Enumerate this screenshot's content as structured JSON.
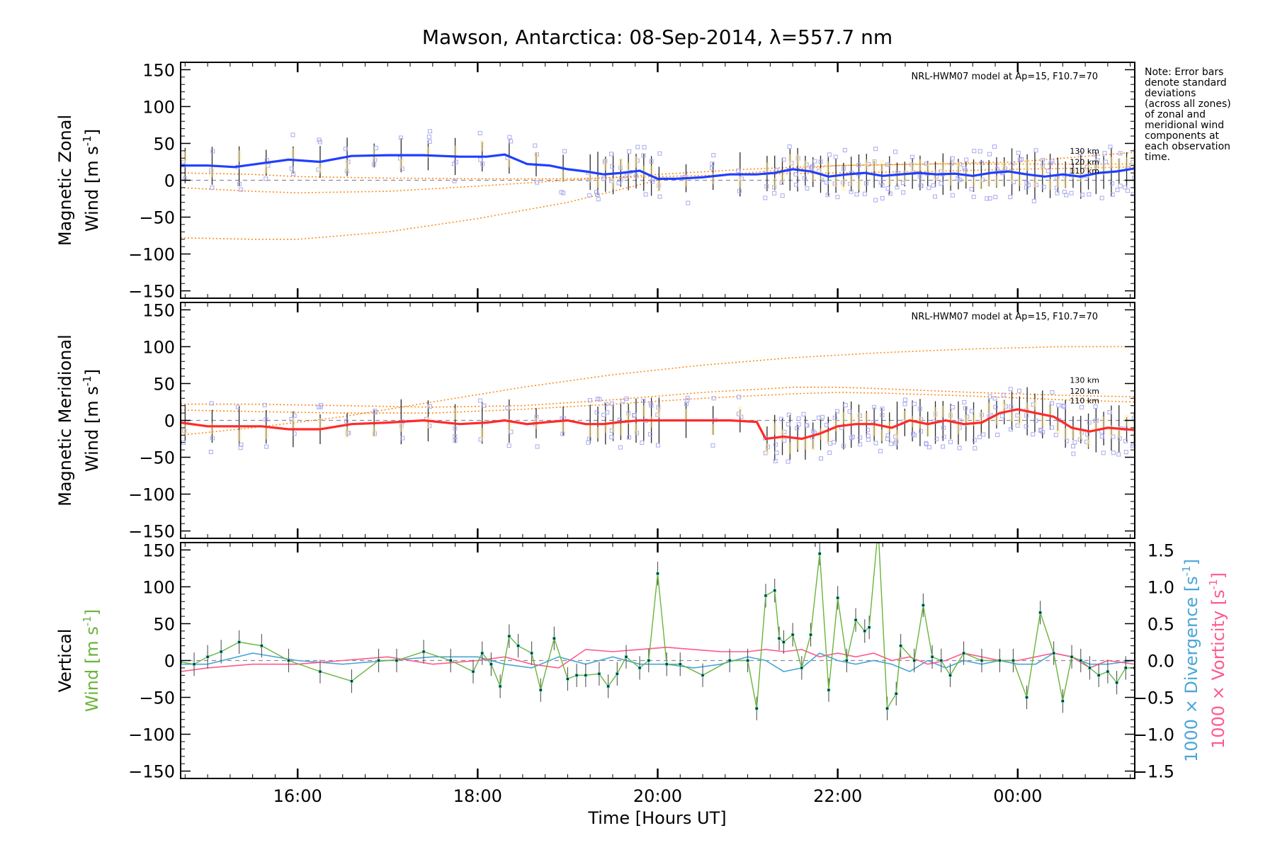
{
  "chart_data": {
    "type": "line",
    "title": "Mawson, Antarctica: 08-Sep-2014, λ=557.7 nm",
    "note": [
      "Note: Error bars",
      "denote standard",
      "deviations",
      "(across all zones)",
      "of zonal and",
      "meridional wind",
      "components at",
      "each observation",
      "time."
    ],
    "xlabel": "Time [Hours UT]",
    "xlim": [
      14.7,
      25.3
    ],
    "xticks": [
      {
        "v": 16,
        "label": "16:00"
      },
      {
        "v": 18,
        "label": "18:00"
      },
      {
        "v": 20,
        "label": "20:00"
      },
      {
        "v": 22,
        "label": "22:00"
      },
      {
        "v": 24,
        "label": "00:00"
      }
    ],
    "ylim": [
      -160,
      160
    ],
    "yticks": [
      150,
      100,
      50,
      0,
      -50,
      -100,
      -150
    ],
    "grid": false,
    "panels": [
      {
        "name": "zonal",
        "ylabel_line1": "Magnetic Zonal",
        "ylabel_line2": "Wind [m s",
        "ylabel_sup": "-1",
        "ylabel_close": "]",
        "model_label": "NRL-HWM07 model at Ap=15, F10.7=70",
        "model_color": "#ff8c1a",
        "model_curves": [
          {
            "name": "130 km",
            "x": [
              14.7,
              15.5,
              16.0,
              17.0,
              18.0,
              19.0,
              19.5,
              20.0,
              21.0,
              22.0,
              23.0,
              24.0,
              25.3
            ],
            "y": [
              -78,
              -80,
              -80,
              -70,
              -52,
              -30,
              -15,
              0,
              10,
              20,
              22,
              25,
              38
            ]
          },
          {
            "name": "120 km",
            "x": [
              14.7,
              15.5,
              16.0,
              17.0,
              18.0,
              19.0,
              20.0,
              21.0,
              22.0,
              23.0,
              24.0,
              25.3
            ],
            "y": [
              -10,
              -15,
              -17,
              -15,
              -8,
              0,
              8,
              15,
              20,
              22,
              22,
              22
            ]
          },
          {
            "name": "110 km",
            "x": [
              14.7,
              15.5,
              16.0,
              17.0,
              18.0,
              19.0,
              20.0,
              21.0,
              22.0,
              23.0,
              24.0,
              25.3
            ],
            "y": [
              10,
              8,
              5,
              3,
              2,
              2,
              5,
              8,
              10,
              12,
              15,
              18
            ]
          }
        ],
        "model_tags": [
          "130 km",
          "120 km",
          "110 km"
        ],
        "mean_color": "#1f3fff",
        "mean": {
          "x": [
            14.7,
            15.0,
            15.3,
            15.6,
            15.9,
            16.25,
            16.6,
            17.0,
            17.4,
            17.8,
            18.1,
            18.3,
            18.55,
            18.8,
            19.0,
            19.2,
            19.4,
            19.6,
            19.8,
            20.0,
            20.2,
            20.5,
            20.8,
            21.1,
            21.3,
            21.5,
            21.7,
            21.9,
            22.1,
            22.3,
            22.5,
            22.7,
            22.9,
            23.1,
            23.3,
            23.5,
            23.7,
            23.9,
            24.1,
            24.3,
            24.5,
            24.7,
            24.9,
            25.1,
            25.3
          ],
          "y": [
            20,
            20,
            18,
            23,
            28,
            25,
            33,
            34,
            34,
            32,
            32,
            35,
            22,
            20,
            15,
            12,
            8,
            10,
            13,
            2,
            2,
            4,
            8,
            8,
            10,
            15,
            12,
            5,
            8,
            10,
            6,
            8,
            10,
            8,
            9,
            6,
            10,
            12,
            8,
            5,
            8,
            5,
            10,
            12,
            16
          ]
        },
        "errbar_half": 22
      },
      {
        "name": "meridional",
        "ylabel_line1": "Magnetic Meridional",
        "ylabel_line2": "Wind [m s",
        "ylabel_sup": "-1",
        "ylabel_close": "]",
        "model_label": "NRL-HWM07 model at Ap=15, F10.7=70",
        "model_color": "#ff8c1a",
        "model_curves": [
          {
            "name": "130 km",
            "x": [
              14.7,
              15.5,
              16.5,
              17.5,
              18.5,
              19.5,
              20.5,
              21.5,
              22.5,
              23.5,
              24.5,
              25.3
            ],
            "y": [
              -20,
              -10,
              5,
              25,
              45,
              62,
              75,
              85,
              92,
              97,
              100,
              100
            ]
          },
          {
            "name": "120 km",
            "x": [
              14.7,
              15.5,
              16.5,
              17.5,
              18.5,
              19.5,
              20.5,
              21.5,
              22.0,
              22.5,
              23.5,
              24.5,
              25.3
            ],
            "y": [
              22,
              22,
              20,
              18,
              20,
              28,
              38,
              45,
              45,
              43,
              38,
              34,
              32
            ]
          },
          {
            "name": "110 km",
            "x": [
              14.7,
              15.5,
              16.5,
              17.5,
              18.5,
              19.5,
              20.5,
              21.5,
              22.0,
              22.5,
              23.5,
              24.5,
              25.3
            ],
            "y": [
              14,
              12,
              10,
              10,
              15,
              22,
              30,
              36,
              38,
              37,
              33,
              28,
              25
            ]
          }
        ],
        "model_tags": [
          "130 km",
          "120 km",
          "110 km"
        ],
        "mean_color": "#ff2a2a",
        "mean": {
          "x": [
            14.7,
            15.0,
            15.3,
            15.6,
            15.9,
            16.25,
            16.6,
            17.0,
            17.4,
            17.8,
            18.1,
            18.3,
            18.55,
            18.8,
            19.0,
            19.2,
            19.4,
            19.6,
            19.8,
            20.0,
            20.2,
            20.5,
            20.8,
            21.1,
            21.2,
            21.4,
            21.6,
            21.8,
            22.0,
            22.2,
            22.4,
            22.6,
            22.8,
            23.0,
            23.2,
            23.4,
            23.6,
            23.8,
            24.0,
            24.2,
            24.4,
            24.6,
            24.8,
            25.0,
            25.3
          ],
          "y": [
            -3,
            -8,
            -8,
            -8,
            -12,
            -12,
            -5,
            -3,
            0,
            -5,
            -3,
            0,
            -5,
            -2,
            0,
            -5,
            -5,
            -2,
            0,
            0,
            0,
            0,
            0,
            -2,
            -25,
            -22,
            -25,
            -18,
            -8,
            -5,
            -5,
            -10,
            0,
            -5,
            0,
            -5,
            -3,
            10,
            15,
            10,
            5,
            -10,
            -15,
            -10,
            -13
          ]
        },
        "errbar_half": 22
      },
      {
        "name": "vertical",
        "ylabel_line1": "Vertical",
        "ylabel_line2": "Wind [m s",
        "ylabel_sup": "-1",
        "ylabel_close": "]",
        "vertical_color": "#6ab43c",
        "vertical": {
          "x": [
            14.7,
            14.85,
            15.0,
            15.15,
            15.35,
            15.6,
            15.9,
            16.25,
            16.6,
            16.9,
            17.1,
            17.4,
            17.7,
            17.95,
            18.05,
            18.15,
            18.25,
            18.35,
            18.45,
            18.6,
            18.7,
            18.85,
            19.0,
            19.1,
            19.2,
            19.35,
            19.45,
            19.55,
            19.65,
            19.8,
            19.9,
            20.0,
            20.1,
            20.25,
            20.5,
            20.8,
            21.0,
            21.1,
            21.2,
            21.3,
            21.35,
            21.4,
            21.5,
            21.6,
            21.7,
            21.8,
            21.9,
            22.0,
            22.1,
            22.2,
            22.3,
            22.35,
            22.45,
            22.55,
            22.65,
            22.7,
            22.85,
            22.95,
            23.05,
            23.15,
            23.25,
            23.4,
            23.6,
            23.8,
            23.95,
            24.1,
            24.25,
            24.4,
            24.5,
            24.6,
            24.7,
            24.8,
            24.9,
            25.0,
            25.1,
            25.2,
            25.3
          ],
          "y": [
            -2,
            -5,
            5,
            12,
            25,
            20,
            0,
            -15,
            -28,
            0,
            0,
            12,
            0,
            -15,
            10,
            -5,
            -35,
            33,
            20,
            10,
            -40,
            30,
            -25,
            -20,
            -20,
            -18,
            -35,
            -18,
            5,
            -10,
            0,
            118,
            -5,
            -5,
            -20,
            0,
            0,
            -65,
            88,
            95,
            30,
            25,
            35,
            -10,
            35,
            145,
            -40,
            85,
            0,
            55,
            40,
            45,
            180,
            -65,
            -45,
            20,
            0,
            75,
            5,
            0,
            -20,
            10,
            0,
            0,
            0,
            -50,
            65,
            10,
            -55,
            5,
            0,
            -10,
            -20,
            -15,
            -30,
            -10,
            -10
          ]
        },
        "divergence_label": "1000 × Divergence [s",
        "divergence_sup": "-1",
        "divergence_close": "]",
        "divergence_color": "#4aa6d6",
        "divergence": {
          "x": [
            14.7,
            15.0,
            15.5,
            16.0,
            16.5,
            17.0,
            17.5,
            18.0,
            18.3,
            18.6,
            18.9,
            19.2,
            19.5,
            19.8,
            20.1,
            20.4,
            20.7,
            21.0,
            21.2,
            21.4,
            21.6,
            21.8,
            22.0,
            22.2,
            22.4,
            22.6,
            22.8,
            23.0,
            23.2,
            23.4,
            23.6,
            23.8,
            24.0,
            24.2,
            24.4,
            24.6,
            24.8,
            25.0,
            25.3
          ],
          "y": [
            -0.05,
            -0.05,
            0.1,
            0.0,
            -0.05,
            0.0,
            0.05,
            0.05,
            -0.05,
            -0.1,
            0.05,
            -0.05,
            0.05,
            -0.05,
            -0.05,
            -0.1,
            -0.05,
            0.05,
            0.0,
            -0.15,
            -0.1,
            0.1,
            0.0,
            -0.05,
            0.0,
            -0.05,
            -0.15,
            0.0,
            -0.1,
            0.0,
            -0.05,
            0.0,
            -0.05,
            -0.05,
            0.1,
            0.05,
            -0.05,
            -0.05,
            0.0
          ]
        },
        "vorticity_label": "1000 × Vorticity [s",
        "vorticity_sup": "-1",
        "vorticity_close": "]",
        "vorticity_color": "#ff5a8c",
        "vorticity": {
          "x": [
            14.7,
            15.0,
            15.5,
            16.0,
            16.5,
            17.0,
            17.5,
            18.0,
            18.3,
            18.6,
            18.9,
            19.2,
            19.5,
            19.8,
            20.1,
            20.4,
            20.7,
            21.0,
            21.2,
            21.4,
            21.6,
            21.8,
            22.0,
            22.2,
            22.4,
            22.6,
            22.8,
            23.0,
            23.2,
            23.4,
            23.6,
            23.8,
            24.0,
            24.2,
            24.4,
            24.6,
            24.8,
            25.0,
            25.3
          ],
          "y": [
            -0.15,
            -0.1,
            -0.05,
            -0.05,
            0.0,
            0.05,
            -0.05,
            0.0,
            0.05,
            -0.05,
            -0.1,
            0.15,
            0.12,
            0.15,
            0.18,
            0.15,
            0.12,
            0.12,
            0.15,
            0.12,
            0.15,
            0.05,
            0.1,
            0.05,
            0.1,
            0.0,
            0.05,
            -0.05,
            0.0,
            0.1,
            0.05,
            0.0,
            0.0,
            0.05,
            0.1,
            0.05,
            -0.1,
            0.0,
            -0.05
          ]
        },
        "yright_lim": [
          -1.6,
          1.6
        ],
        "yright_ticks": [
          {
            "v": 1.5,
            "label": "1.5"
          },
          {
            "v": 1.0,
            "label": "1.0"
          },
          {
            "v": 0.5,
            "label": "0.5"
          },
          {
            "v": 0.0,
            "label": "0.0"
          },
          {
            "v": -0.5,
            "label": "−0.5"
          },
          {
            "v": -1.0,
            "label": "−1.0"
          },
          {
            "v": -1.5,
            "label": "−1.5"
          }
        ],
        "errbar_half": 16
      }
    ]
  }
}
